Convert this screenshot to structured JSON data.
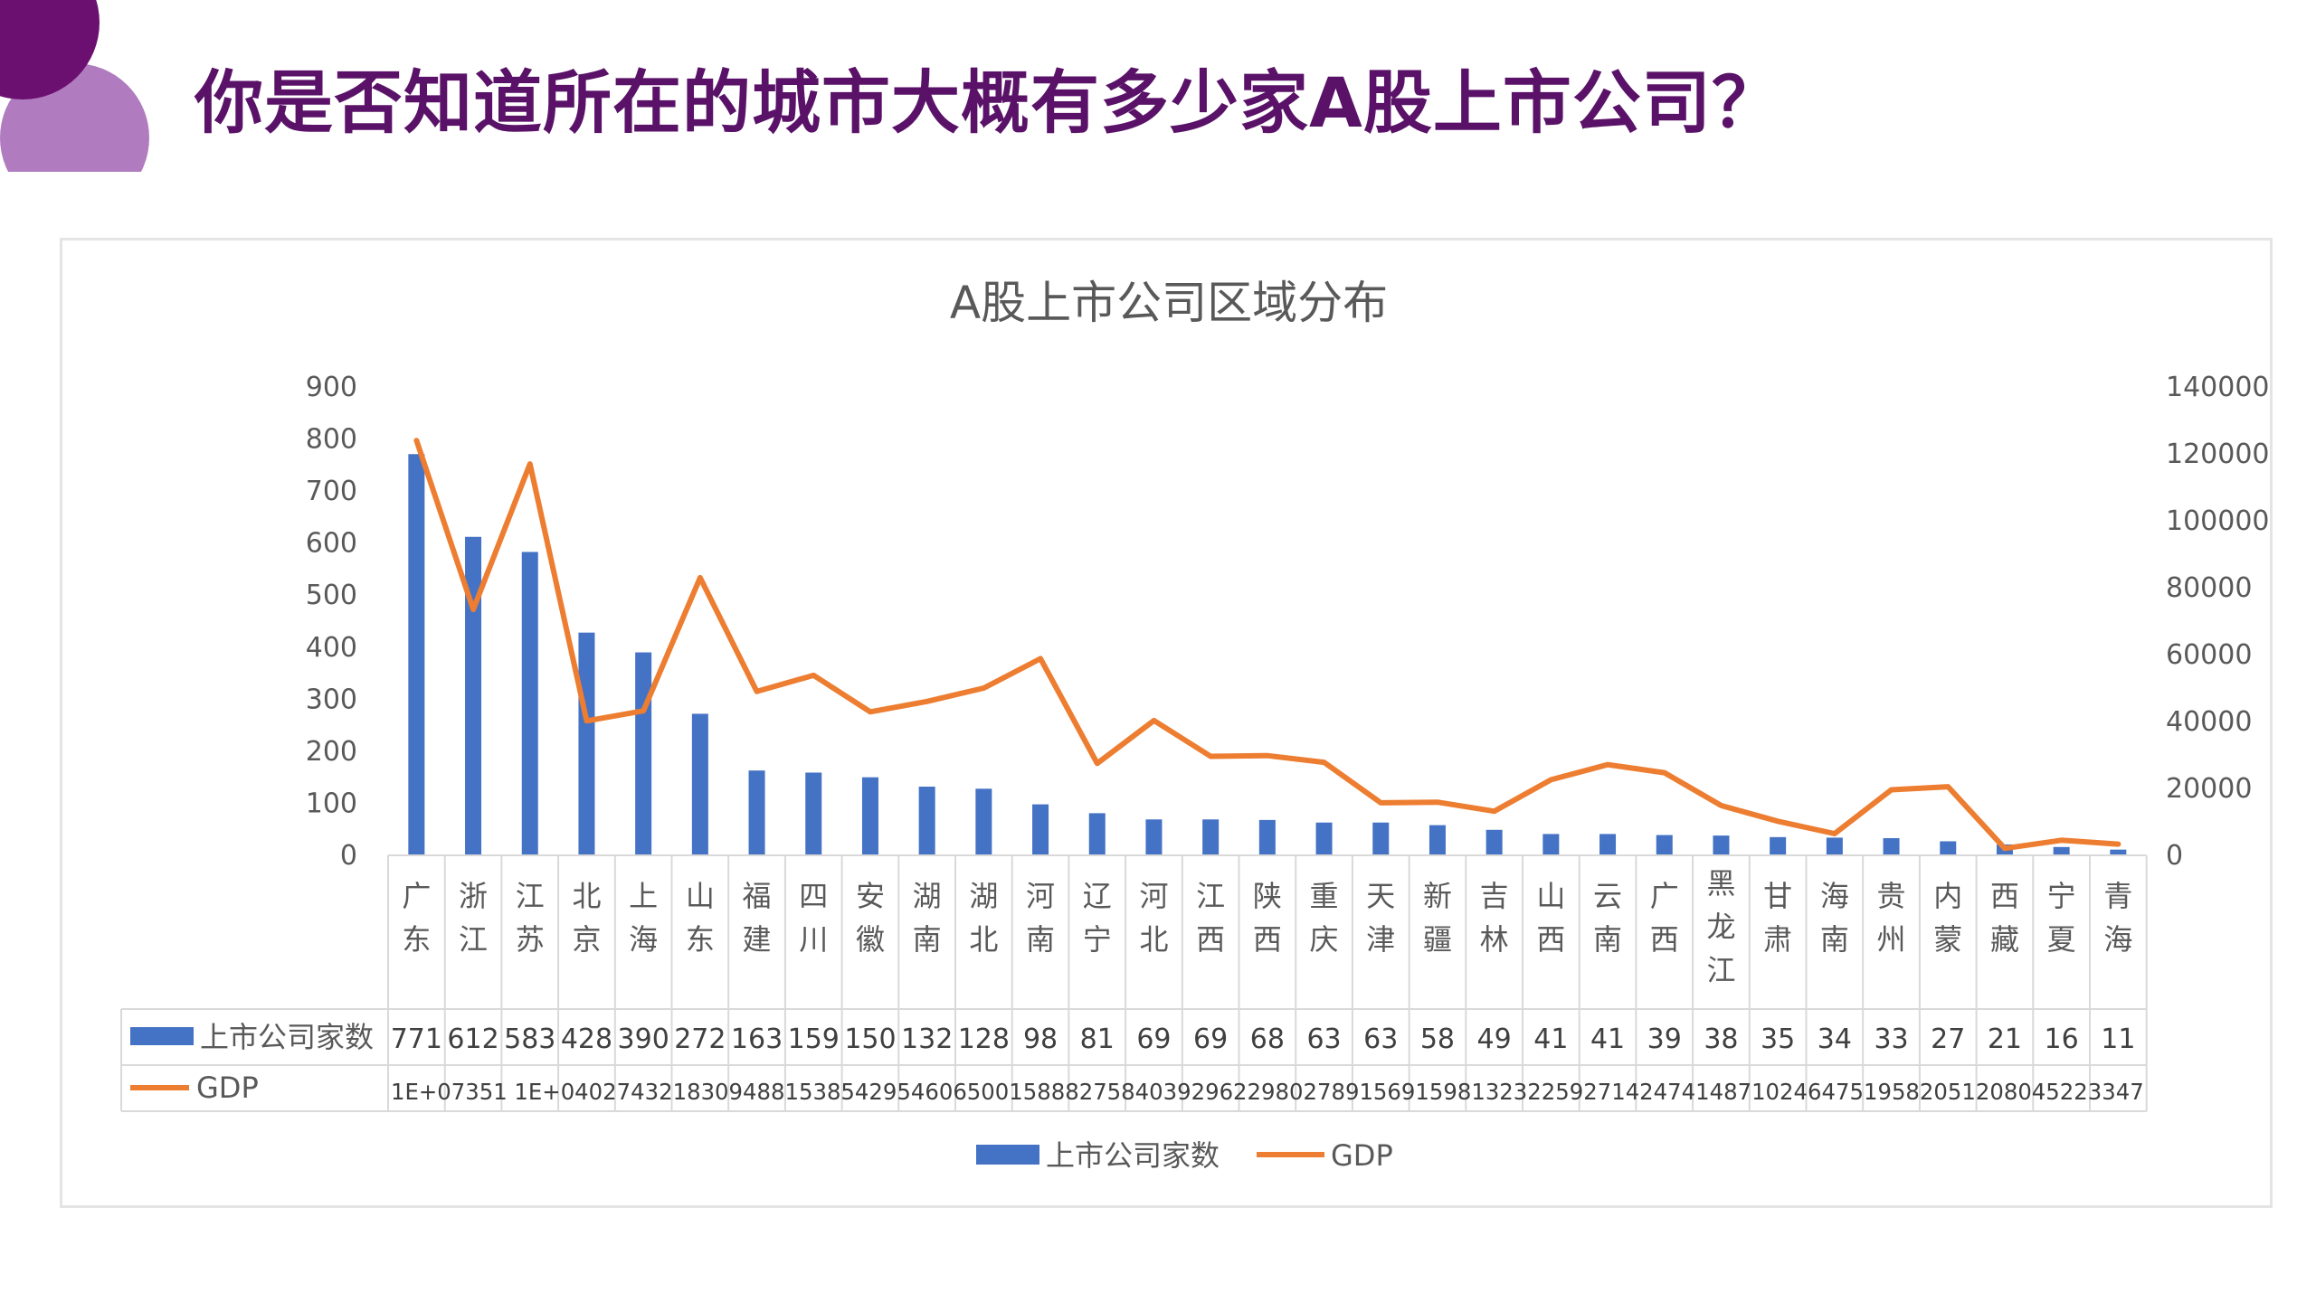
{
  "slide": {
    "title": "你是否知道所在的城市大概有多少家A股上市公司？"
  },
  "theme": {
    "bar_color": "#4472c4",
    "line_color": "#ed7d31",
    "title_color": "#5a1268",
    "decor_dark": "#6b1070",
    "decor_light": "#b07bbf"
  },
  "chart_data": {
    "type": "bar",
    "title": "A股上市公司区域分布",
    "categories": [
      "广东",
      "浙江",
      "江苏",
      "北京",
      "上海",
      "山东",
      "福建",
      "四川",
      "安徽",
      "湖南",
      "湖北",
      "河南",
      "辽宁",
      "河北",
      "江西",
      "陕西",
      "重庆",
      "天津",
      "新疆",
      "吉林",
      "山西",
      "云南",
      "广西",
      "黑龙江",
      "甘肃",
      "海南",
      "贵州",
      "内蒙",
      "西藏",
      "宁夏",
      "青海"
    ],
    "series": [
      {
        "name": "上市公司家数",
        "type": "bar",
        "axis": "left",
        "values": [
          771,
          612,
          583,
          428,
          390,
          272,
          163,
          159,
          150,
          132,
          128,
          98,
          81,
          69,
          69,
          68,
          63,
          63,
          58,
          49,
          41,
          41,
          39,
          38,
          35,
          34,
          33,
          27,
          21,
          16,
          11
        ]
      },
      {
        "name": "GDP",
        "type": "line",
        "axis": "right",
        "values": [
          124000,
          73500,
          117000,
          40200,
          43200,
          83000,
          49000,
          53800,
          42900,
          46000,
          50000,
          58800,
          27500,
          40300,
          29600,
          29800,
          27800,
          15700,
          15900,
          13200,
          22600,
          27100,
          24700,
          14900,
          10200,
          6475,
          19600,
          20500,
          2080,
          4522,
          3347
        ]
      }
    ],
    "table_labels": {
      "bars": [
        "771",
        "612",
        "583",
        "428",
        "390",
        "272",
        "163",
        "159",
        "150",
        "132",
        "128",
        "98",
        "81",
        "69",
        "69",
        "68",
        "63",
        "63",
        "58",
        "49",
        "41",
        "41",
        "39",
        "38",
        "35",
        "34",
        "33",
        "27",
        "21",
        "16",
        "11"
      ],
      "gdp": [
        "1E+07",
        "35",
        "11",
        "E+04",
        "02",
        "74",
        "32",
        "18",
        "30",
        "94",
        "88",
        "15",
        "38",
        "54",
        "29",
        "54",
        "60",
        "65",
        "00",
        "15",
        "88",
        "82",
        "75",
        "84",
        "03",
        "92",
        "96",
        "22",
        "98",
        "02",
        "78",
        "91",
        "56",
        "91",
        "59",
        "81",
        "32",
        "32",
        "25",
        "92",
        "71",
        "42",
        "47",
        "41",
        "48",
        "71",
        "02",
        "46",
        "47",
        "51",
        "95",
        "82",
        "05",
        "12",
        "08",
        "04",
        "52",
        "23",
        "347"
      ]
    },
    "gdp_row_text": "1E+07351 1E+04027432183094881538542954606500158882758403929622980278915691598132322592714247414871024647519582051208045223347",
    "y_left": {
      "ticks": [
        0,
        100,
        200,
        300,
        400,
        500,
        600,
        700,
        800,
        900
      ],
      "ylim": [
        0,
        900
      ]
    },
    "y_right": {
      "ticks": [
        0,
        20000,
        40000,
        60000,
        80000,
        100000,
        120000,
        140000
      ],
      "ylim": [
        0,
        140000
      ]
    },
    "legend": {
      "position": "bottom",
      "items": [
        "上市公司家数",
        "GDP"
      ]
    },
    "data_table": true,
    "grid": false
  }
}
